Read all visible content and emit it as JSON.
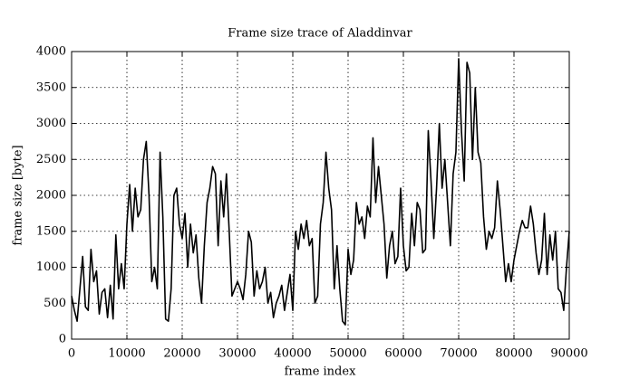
{
  "chart_data": {
    "type": "line",
    "title": "Frame size trace of Aladdinvar",
    "xlabel": "frame index",
    "ylabel": "frame size [byte]",
    "color": "#000000",
    "grid": true,
    "xlim": [
      0,
      90000
    ],
    "ylim": [
      0,
      4000
    ],
    "xticks": [
      0,
      10000,
      20000,
      30000,
      40000,
      50000,
      60000,
      70000,
      80000,
      90000
    ],
    "yticks": [
      0,
      500,
      1000,
      1500,
      2000,
      2500,
      3000,
      3500,
      4000
    ],
    "x": [
      0,
      500,
      1000,
      1500,
      2000,
      2500,
      3000,
      3500,
      4000,
      4500,
      5000,
      5500,
      6000,
      6500,
      7000,
      7500,
      8000,
      8500,
      9000,
      9500,
      10000,
      10500,
      11000,
      11500,
      12000,
      12500,
      13000,
      13500,
      14000,
      14500,
      15000,
      15500,
      16000,
      16500,
      17000,
      17500,
      18000,
      18500,
      19000,
      19500,
      20000,
      20500,
      21000,
      21500,
      22000,
      22500,
      23000,
      23500,
      24000,
      24500,
      25000,
      25500,
      26000,
      26500,
      27000,
      27500,
      28000,
      28500,
      29000,
      29500,
      30000,
      30500,
      31000,
      31500,
      32000,
      32500,
      33000,
      33500,
      34000,
      34500,
      35000,
      35500,
      36000,
      36500,
      37000,
      37500,
      38000,
      38500,
      39000,
      39500,
      40000,
      40500,
      41000,
      41500,
      42000,
      42500,
      43000,
      43500,
      44000,
      44500,
      45000,
      45500,
      46000,
      46500,
      47000,
      47500,
      48000,
      48500,
      49000,
      49500,
      50000,
      50500,
      51000,
      51500,
      52000,
      52500,
      53000,
      53500,
      54000,
      54500,
      55000,
      55500,
      56000,
      56500,
      57000,
      57500,
      58000,
      58500,
      59000,
      59500,
      60000,
      60500,
      61000,
      61500,
      62000,
      62500,
      63000,
      63500,
      64000,
      64500,
      65000,
      65500,
      66000,
      66500,
      67000,
      67500,
      68000,
      68500,
      69000,
      69500,
      70000,
      70500,
      71000,
      71500,
      72000,
      72500,
      73000,
      73500,
      74000,
      74500,
      75000,
      75500,
      76000,
      76500,
      77000,
      77500,
      78000,
      78500,
      79000,
      79500,
      80000,
      80500,
      81000,
      81500,
      82000,
      82500,
      83000,
      83500,
      84000,
      84500,
      85000,
      85500,
      86000,
      86500,
      87000,
      87500,
      88000,
      88500,
      89000,
      89500,
      90000
    ],
    "values": [
      600,
      400,
      250,
      700,
      1150,
      450,
      400,
      1250,
      800,
      950,
      350,
      650,
      700,
      300,
      750,
      280,
      1450,
      700,
      1050,
      700,
      1600,
      2150,
      1500,
      2100,
      1700,
      1800,
      2500,
      2750,
      2000,
      800,
      1000,
      700,
      2600,
      1700,
      280,
      250,
      700,
      2000,
      2100,
      1600,
      1400,
      1750,
      1000,
      1600,
      1200,
      1450,
      850,
      500,
      1300,
      1900,
      2100,
      2400,
      2300,
      1300,
      2200,
      1700,
      2300,
      1500,
      600,
      700,
      800,
      700,
      550,
      900,
      1500,
      1350,
      600,
      950,
      700,
      800,
      1000,
      500,
      650,
      300,
      500,
      600,
      750,
      400,
      650,
      900,
      400,
      1500,
      1250,
      1600,
      1400,
      1650,
      1300,
      1400,
      500,
      600,
      1600,
      1900,
      2600,
      2100,
      1800,
      700,
      1300,
      700,
      250,
      200,
      1250,
      900,
      1100,
      1900,
      1600,
      1700,
      1400,
      1850,
      1700,
      2800,
      1900,
      2400,
      2000,
      1600,
      850,
      1300,
      1500,
      1050,
      1150,
      2100,
      1300,
      950,
      1000,
      1750,
      1300,
      1900,
      1800,
      1200,
      1250,
      2900,
      2200,
      1400,
      2100,
      3000,
      2100,
      2500,
      1900,
      1300,
      2300,
      2600,
      3900,
      2900,
      2200,
      3850,
      3700,
      2500,
      3500,
      2600,
      2450,
      1700,
      1250,
      1500,
      1400,
      1550,
      2200,
      1800,
      1300,
      800,
      1050,
      800,
      1100,
      1300,
      1500,
      1650,
      1550,
      1550,
      1850,
      1600,
      1200,
      900,
      1100,
      1750,
      900,
      1450,
      1100,
      1500,
      700,
      650,
      400,
      1000,
      1500
    ]
  }
}
